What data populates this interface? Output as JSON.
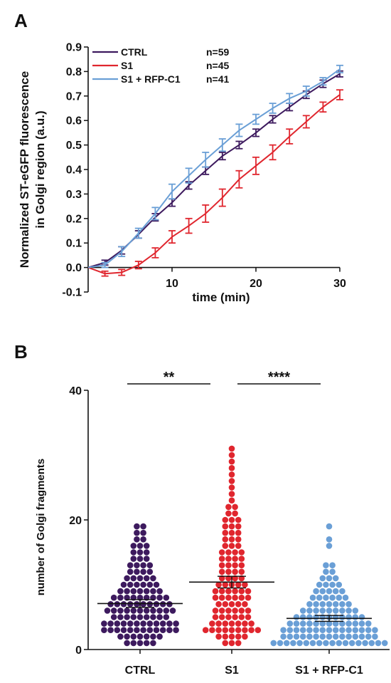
{
  "panel_a_label": "A",
  "panel_b_label": "B",
  "colors": {
    "CTRL": "#3d1a5e",
    "S1": "#e0262e",
    "S1 + RFP-C1": "#6a9fd6"
  },
  "chart_data": [
    {
      "type": "line",
      "panel": "A",
      "xlabel": "time (min)",
      "ylabel_lines": [
        "Normalized ST-eGFP fluorescence",
        "in Golgi region  (a.u.)"
      ],
      "xlim": [
        0,
        30
      ],
      "ylim": [
        -0.1,
        0.9
      ],
      "xticks": [
        10,
        20,
        30
      ],
      "yticks": [
        -0.1,
        0.0,
        0.1,
        0.2,
        0.3,
        0.4,
        0.5,
        0.6,
        0.7,
        0.8,
        0.9
      ],
      "ytick_labels": [
        "-0.1",
        "0.0",
        "0.1",
        "0.2",
        "0.3",
        "0.4",
        "0.5",
        "0.6",
        "0.7",
        "0.8",
        "0.9"
      ],
      "legend_position": "top-left",
      "series": [
        {
          "name": "CTRL",
          "n_label": "n=59",
          "color": "#3d1a5e",
          "x": [
            0,
            2,
            4,
            6,
            8,
            10,
            12,
            14,
            16,
            18,
            20,
            22,
            24,
            26,
            28,
            30
          ],
          "y": [
            0.0,
            0.02,
            0.07,
            0.135,
            0.205,
            0.265,
            0.335,
            0.395,
            0.455,
            0.5,
            0.55,
            0.605,
            0.655,
            0.705,
            0.75,
            0.79
          ],
          "err": [
            0,
            0.01,
            0.015,
            0.015,
            0.015,
            0.015,
            0.015,
            0.015,
            0.015,
            0.015,
            0.015,
            0.015,
            0.015,
            0.015,
            0.015,
            0.012
          ]
        },
        {
          "name": "S1",
          "n_label": "n=45",
          "color": "#e0262e",
          "x": [
            0,
            2,
            4,
            6,
            8,
            10,
            12,
            14,
            16,
            18,
            20,
            22,
            24,
            26,
            28,
            30
          ],
          "y": [
            0.0,
            -0.025,
            -0.02,
            0.01,
            0.06,
            0.125,
            0.17,
            0.22,
            0.285,
            0.36,
            0.415,
            0.47,
            0.535,
            0.595,
            0.655,
            0.705
          ],
          "err": [
            0,
            0.01,
            0.012,
            0.015,
            0.02,
            0.025,
            0.03,
            0.035,
            0.035,
            0.035,
            0.035,
            0.03,
            0.03,
            0.025,
            0.02,
            0.02
          ]
        },
        {
          "name": "S1 + RFP-C1",
          "n_label": "n=41",
          "color": "#6a9fd6",
          "x": [
            0,
            2,
            4,
            6,
            8,
            10,
            12,
            14,
            16,
            18,
            20,
            22,
            24,
            26,
            28,
            30
          ],
          "y": [
            0.0,
            0.01,
            0.065,
            0.14,
            0.22,
            0.31,
            0.375,
            0.44,
            0.5,
            0.56,
            0.605,
            0.65,
            0.69,
            0.72,
            0.76,
            0.81
          ],
          "err": [
            0,
            0.01,
            0.02,
            0.02,
            0.025,
            0.03,
            0.03,
            0.03,
            0.025,
            0.025,
            0.02,
            0.02,
            0.02,
            0.02,
            0.015,
            0.015
          ]
        }
      ]
    },
    {
      "type": "scatter",
      "panel": "B",
      "xlabel": "",
      "ylabel": "number of Golgi fragments",
      "ylim": [
        0,
        40
      ],
      "yticks": [
        0,
        20,
        40
      ],
      "ytick_labels": [
        "0",
        "20",
        "40"
      ],
      "categories": [
        "CTRL",
        "S1",
        "S1 + RFP-C1"
      ],
      "significance": [
        {
          "from": "CTRL",
          "to": "S1",
          "label": "**"
        },
        {
          "from": "S1",
          "to": "S1 + RFP-C1",
          "label": "****"
        }
      ],
      "series": [
        {
          "name": "CTRL",
          "color": "#3d1a5e",
          "mean": 7.1,
          "sem": 0.6,
          "values": [
            1,
            1,
            1,
            1,
            1,
            2,
            2,
            2,
            2,
            2,
            2,
            2,
            3,
            3,
            3,
            3,
            3,
            3,
            3,
            3,
            3,
            3,
            3,
            3,
            4,
            4,
            4,
            4,
            4,
            4,
            4,
            4,
            4,
            4,
            4,
            4,
            5,
            5,
            5,
            5,
            5,
            5,
            5,
            5,
            5,
            6,
            6,
            6,
            6,
            6,
            6,
            6,
            6,
            6,
            6,
            6,
            7,
            7,
            7,
            7,
            7,
            7,
            7,
            7,
            7,
            7,
            8,
            8,
            8,
            8,
            8,
            8,
            8,
            8,
            8,
            9,
            9,
            9,
            9,
            9,
            9,
            9,
            10,
            10,
            10,
            10,
            10,
            10,
            11,
            11,
            11,
            11,
            11,
            12,
            12,
            12,
            12,
            13,
            13,
            13,
            13,
            14,
            14,
            14,
            15,
            15,
            15,
            16,
            16,
            16,
            17,
            17,
            18,
            18,
            19,
            19
          ]
        },
        {
          "name": "S1",
          "color": "#e0262e",
          "mean": 10.4,
          "sem": 0.9,
          "values": [
            1,
            1,
            1,
            2,
            2,
            2,
            2,
            2,
            3,
            3,
            3,
            3,
            3,
            3,
            3,
            3,
            3,
            4,
            4,
            4,
            4,
            4,
            4,
            4,
            5,
            5,
            5,
            5,
            5,
            5,
            6,
            6,
            6,
            6,
            6,
            6,
            7,
            7,
            7,
            7,
            7,
            8,
            8,
            8,
            8,
            8,
            8,
            9,
            9,
            9,
            9,
            9,
            9,
            10,
            10,
            10,
            10,
            10,
            11,
            11,
            11,
            11,
            12,
            12,
            12,
            12,
            13,
            13,
            13,
            13,
            14,
            14,
            14,
            14,
            15,
            15,
            15,
            15,
            16,
            16,
            16,
            17,
            17,
            17,
            18,
            18,
            18,
            19,
            19,
            19,
            20,
            20,
            20,
            21,
            21,
            22,
            22,
            23,
            24,
            25,
            26,
            27,
            28,
            29,
            30,
            31
          ]
        },
        {
          "name": "S1 + RFP-C1",
          "color": "#6a9fd6",
          "mean": 4.8,
          "sem": 0.45,
          "values": [
            1,
            1,
            1,
            1,
            1,
            1,
            1,
            1,
            1,
            1,
            1,
            1,
            1,
            1,
            1,
            1,
            1,
            1,
            2,
            2,
            2,
            2,
            2,
            2,
            2,
            2,
            2,
            2,
            2,
            2,
            2,
            2,
            2,
            3,
            3,
            3,
            3,
            3,
            3,
            3,
            3,
            3,
            3,
            3,
            3,
            3,
            3,
            3,
            4,
            4,
            4,
            4,
            4,
            4,
            4,
            4,
            4,
            4,
            4,
            4,
            4,
            5,
            5,
            5,
            5,
            5,
            5,
            5,
            5,
            5,
            5,
            5,
            6,
            6,
            6,
            6,
            6,
            6,
            6,
            6,
            6,
            7,
            7,
            7,
            7,
            7,
            7,
            7,
            8,
            8,
            8,
            8,
            8,
            8,
            9,
            9,
            9,
            9,
            9,
            10,
            10,
            10,
            10,
            11,
            11,
            11,
            12,
            12,
            13,
            13,
            16,
            17,
            19
          ]
        }
      ]
    }
  ]
}
